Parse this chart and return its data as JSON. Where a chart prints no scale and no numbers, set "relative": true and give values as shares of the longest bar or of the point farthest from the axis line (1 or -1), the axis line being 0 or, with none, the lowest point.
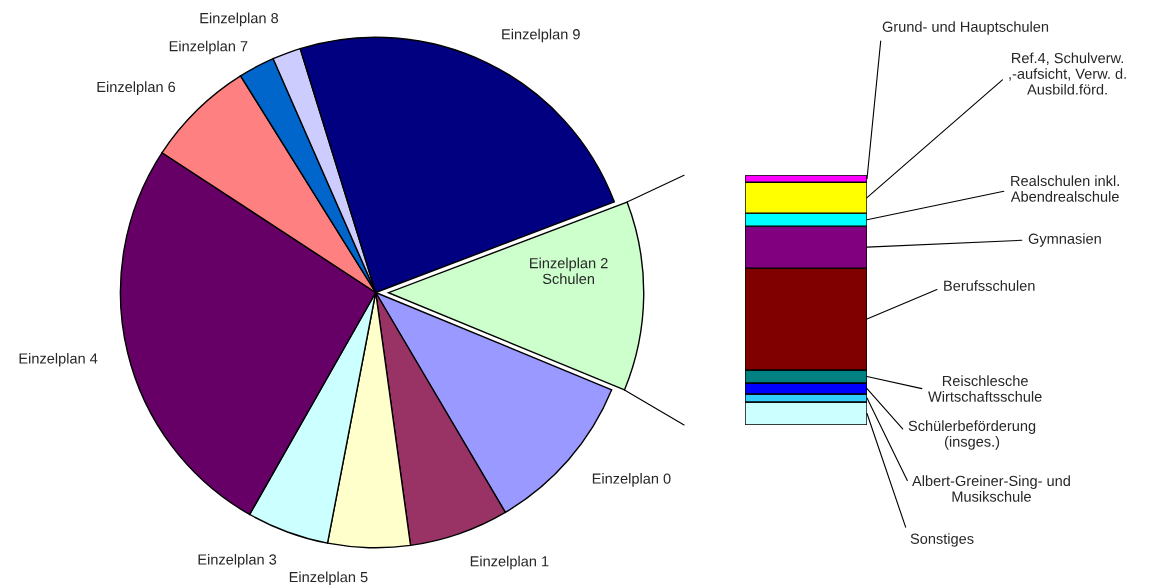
{
  "chart_data": [
    {
      "type": "pie",
      "categories": [
        "Einzelplan 2\nSchulen",
        "Einzelplan 0",
        "Einzelplan 1",
        "Einzelplan 5",
        "Einzelplan 3",
        "Einzelplan 4",
        "Einzelplan 6",
        "Einzelplan 7",
        "Einzelplan 8",
        "Einzelplan 9"
      ],
      "values": [
        12,
        10.3,
        6.3,
        5.2,
        5.2,
        26,
        6.9,
        2.3,
        1.8,
        24
      ],
      "colors": [
        "#ccffcc",
        "#9999ff",
        "#993366",
        "#ffffcc",
        "#ccffff",
        "#660066",
        "#ff8080",
        "#0066cc",
        "#ccccff",
        "#000080"
      ]
    },
    {
      "type": "bar",
      "stacked": true,
      "relative": true,
      "legend": "right",
      "categories": [
        null
      ],
      "series": [
        {
          "name": "Sonstiges",
          "color": "#ccffff",
          "values": [
            0.092
          ]
        },
        {
          "name": "Albert-Greiner-Sing- und\nMusikschule",
          "color": "#33ccff",
          "values": [
            0.032
          ]
        },
        {
          "name": "Schülerbeförderung\n(insges.)",
          "color": "#0000ff",
          "values": [
            0.044
          ]
        },
        {
          "name": "Reischlesche\nWirtschaftsschule",
          "color": "#008080",
          "values": [
            0.052
          ]
        },
        {
          "name": "Berufsschulen",
          "color": "#800000",
          "values": [
            0.408
          ]
        },
        {
          "name": "Gymnasien",
          "color": "#800080",
          "values": [
            0.168
          ]
        },
        {
          "name": "Realschulen inkl.\nAbendrealschule",
          "color": "#00ffff",
          "values": [
            0.052
          ]
        },
        {
          "name": "Ref.4, Schulverw.\n,-aufsicht, Verw. d.\nAusbild.förd.",
          "color": "#ffff00",
          "values": [
            0.124
          ]
        },
        {
          "name": "Grund- und Hauptschulen",
          "color": "#ff00ff",
          "values": [
            0.028
          ]
        }
      ]
    }
  ]
}
